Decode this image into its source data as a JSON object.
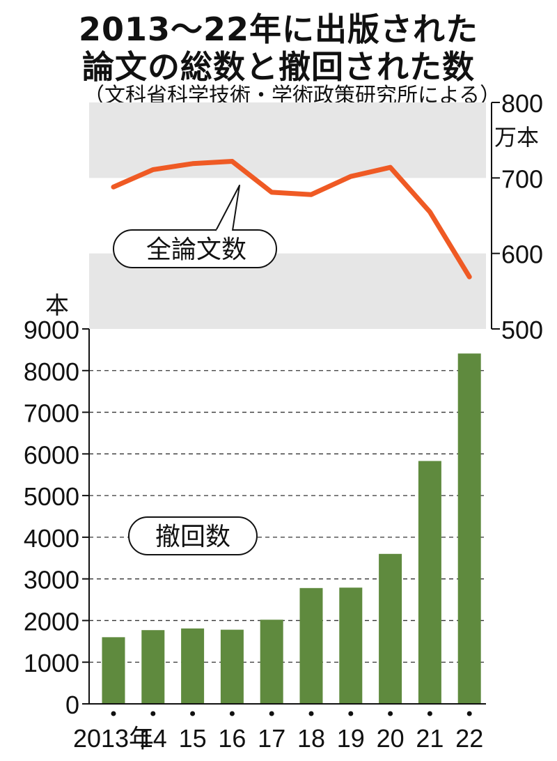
{
  "title_line1": "2013～22年に出版された",
  "title_line2": "論文の総数と撤回された数",
  "source": "（文科省科学技術・学術政策研究所による）",
  "colors": {
    "line": "#ef5a24",
    "bar": "#5f8a3e",
    "band": "#e6e6e6",
    "axis": "#111111"
  },
  "chart_data": [
    {
      "type": "line",
      "name": "全論文数",
      "unit": "万本",
      "x": [
        "2013",
        "14",
        "15",
        "16",
        "17",
        "18",
        "19",
        "20",
        "21",
        "22"
      ],
      "values": [
        688,
        711,
        719,
        722,
        681,
        678,
        702,
        714,
        655,
        569
      ],
      "ylim": [
        500,
        800
      ],
      "yticks": [
        "500",
        "600",
        "700",
        "800"
      ],
      "ytick_values": [
        500,
        600,
        700,
        800
      ],
      "axis_side": "right"
    },
    {
      "type": "bar",
      "name": "撤回数",
      "unit": "本",
      "categories": [
        "2013年",
        "14",
        "15",
        "16",
        "17",
        "18",
        "19",
        "20",
        "21",
        "22"
      ],
      "values": [
        1600,
        1770,
        1810,
        1780,
        2020,
        2780,
        2790,
        3600,
        5830,
        8410
      ],
      "ylim": [
        0,
        9000
      ],
      "yticks": [
        "0",
        "1000",
        "2000",
        "3000",
        "4000",
        "5000",
        "6000",
        "7000",
        "8000",
        "9000"
      ],
      "ytick_values": [
        0,
        1000,
        2000,
        3000,
        4000,
        5000,
        6000,
        7000,
        8000,
        9000
      ],
      "axis_side": "left"
    }
  ]
}
